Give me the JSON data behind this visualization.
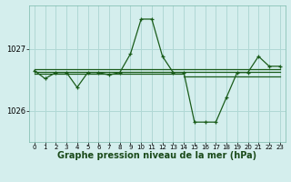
{
  "background_color": "#d4eeed",
  "grid_color": "#b0d8d5",
  "line_color": "#1a5c1a",
  "marker_color": "#1a5c1a",
  "xlabel": "Graphe pression niveau de la mer (hPa)",
  "xlabel_fontsize": 7.0,
  "xlim": [
    -0.5,
    23.5
  ],
  "ylim": [
    1025.5,
    1027.7
  ],
  "yticks": [
    1026,
    1027
  ],
  "xticks": [
    0,
    1,
    2,
    3,
    4,
    5,
    6,
    7,
    8,
    9,
    10,
    11,
    12,
    13,
    14,
    15,
    16,
    17,
    18,
    19,
    20,
    21,
    22,
    23
  ],
  "main_x": [
    0,
    1,
    2,
    3,
    4,
    5,
    6,
    7,
    8,
    9,
    10,
    11,
    12,
    13,
    14,
    15,
    16,
    17,
    18,
    19,
    20,
    21,
    22,
    23
  ],
  "main_y": [
    1026.65,
    1026.52,
    1026.62,
    1026.62,
    1026.38,
    1026.62,
    1026.62,
    1026.58,
    1026.62,
    1026.92,
    1027.48,
    1027.48,
    1026.88,
    1026.62,
    1026.62,
    1025.82,
    1025.82,
    1025.82,
    1026.22,
    1026.62,
    1026.62,
    1026.88,
    1026.72,
    1026.72
  ],
  "hline1_y": 1026.68,
  "hline2_y": 1026.63,
  "hline3_x0": 0,
  "hline3_x1": 14,
  "hline3_y": 1026.6,
  "hline4_x0": 14,
  "hline4_x1": 23,
  "hline4_y": 1026.56
}
